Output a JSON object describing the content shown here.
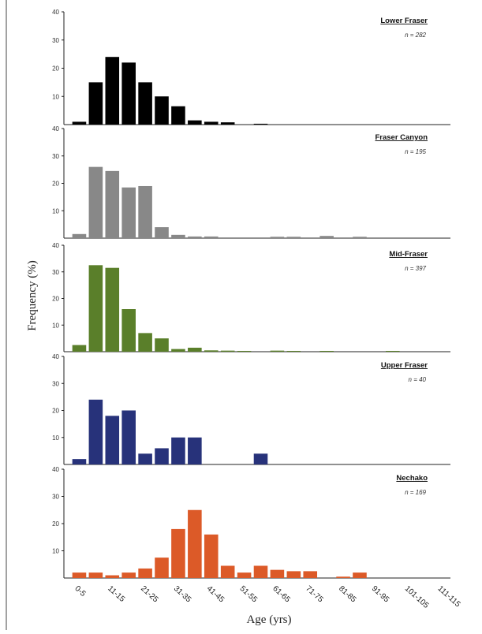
{
  "chart_data": {
    "type": "bar",
    "layout": "stacked-panels",
    "xlabel": "Age (yrs)",
    "ylabel": "Frequency (%)",
    "ylim": [
      0,
      40
    ],
    "y_ticks": [
      "10",
      "20",
      "30",
      "40"
    ],
    "categories": [
      "0-5",
      "6-10",
      "11-15",
      "16-20",
      "21-25",
      "26-30",
      "31-35",
      "36-40",
      "41-45",
      "46-50",
      "51-55",
      "56-60",
      "61-65",
      "66-70",
      "71-75",
      "76-80",
      "81-85",
      "86-90",
      "91-95",
      "96-100",
      "101-105",
      "106-110",
      "111-115"
    ],
    "x_tick_labels": [
      "0-5",
      "11-15",
      "21-25",
      "31-35",
      "41-45",
      "51-55",
      "61-65",
      "71-75",
      "81-85",
      "91-95",
      "101-105",
      "111-115"
    ],
    "panels": [
      {
        "name": "Lower Fraser",
        "n_label": "n = 282",
        "color": "#000000",
        "values": [
          1,
          15,
          24,
          22,
          15,
          10,
          6.5,
          1.5,
          1,
          0.8,
          0,
          0.3,
          0,
          0,
          0,
          0,
          0,
          0,
          0,
          0,
          0,
          0,
          0
        ]
      },
      {
        "name": "Fraser Canyon",
        "n_label": "n = 195",
        "color": "#888888",
        "values": [
          1.5,
          26,
          24.5,
          18.5,
          19,
          4,
          1.2,
          0.6,
          0.6,
          0,
          0,
          0,
          0.5,
          0.5,
          0,
          0.8,
          0,
          0.5,
          0,
          0,
          0,
          0,
          0
        ]
      },
      {
        "name": "Mid-Fraser",
        "n_label": "n = 397",
        "color": "#5a7f2a",
        "values": [
          2.5,
          32.5,
          31.5,
          16,
          7,
          5,
          1,
          1.5,
          0.5,
          0.4,
          0.3,
          0,
          0.4,
          0.3,
          0,
          0.3,
          0,
          0,
          0,
          0.3,
          0,
          0,
          0
        ]
      },
      {
        "name": "Upper Fraser",
        "n_label": "n = 40",
        "color": "#27327a",
        "values": [
          2,
          24,
          18,
          20,
          4,
          6,
          10,
          10,
          0,
          0,
          0,
          4,
          0,
          0,
          0,
          0,
          0,
          0,
          0,
          0,
          0,
          0,
          0
        ]
      },
      {
        "name": "Nechako",
        "n_label": "n = 169",
        "color": "#dc5a28",
        "values": [
          2,
          2,
          1,
          2,
          3.5,
          7.5,
          18,
          25,
          16,
          4.5,
          2,
          4.5,
          3,
          2.5,
          2.5,
          0,
          0.5,
          2,
          0,
          0,
          0,
          0,
          0
        ]
      }
    ]
  }
}
